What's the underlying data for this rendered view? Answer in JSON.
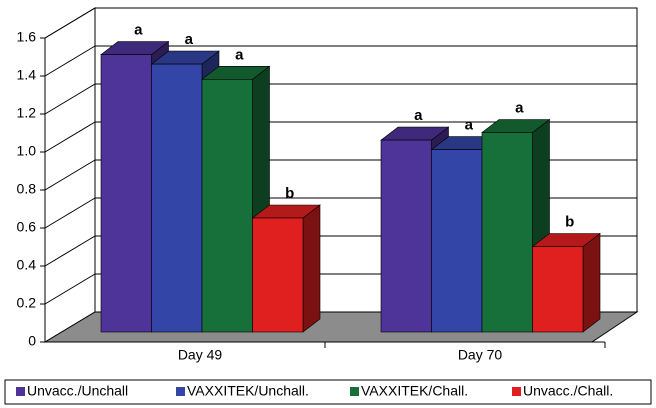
{
  "chart_data": {
    "type": "bar3d",
    "categories": [
      "Day 49",
      "Day 70"
    ],
    "series": [
      {
        "name": "Unvacc./Unchall",
        "color": "#4e3399",
        "values": [
          1.46,
          1.01
        ],
        "letters": [
          "a",
          "a"
        ]
      },
      {
        "name": "VAXXITEK/Unchall.",
        "color": "#3345a6",
        "values": [
          1.41,
          0.96
        ],
        "letters": [
          "a",
          "a"
        ]
      },
      {
        "name": "VAXXITEK/Chall.",
        "color": "#17703a",
        "values": [
          1.33,
          1.05
        ],
        "letters": [
          "a",
          "a"
        ]
      },
      {
        "name": "Unvacc./Chall.",
        "color": "#e0201f",
        "values": [
          0.6,
          0.45
        ],
        "letters": [
          "b",
          "b"
        ]
      }
    ],
    "ylim": [
      0,
      1.6
    ],
    "yticks": [
      0,
      0.2,
      0.4,
      0.6,
      0.8,
      {
        "value": 1.0,
        "label": "1.0"
      },
      1.2,
      1.4,
      1.6
    ],
    "grid": true,
    "legend": "bottom"
  }
}
